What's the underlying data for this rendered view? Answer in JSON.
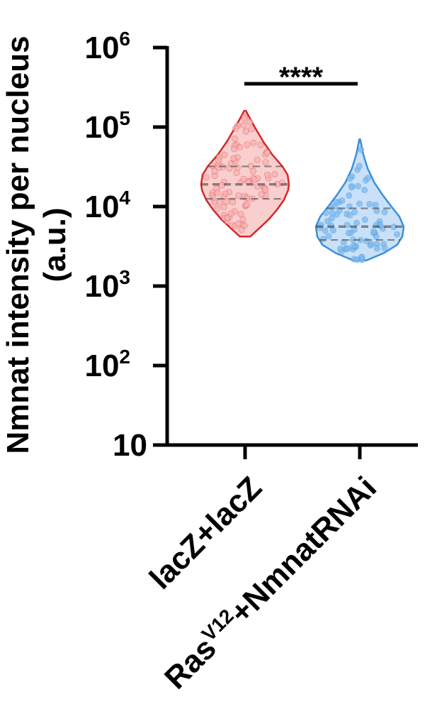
{
  "chart_data": {
    "type": "violin",
    "ylabel_lines": [
      "Nmnat intensity per nucleus",
      "(a.u.)"
    ],
    "yscale": "log",
    "ylim": [
      10,
      1000000
    ],
    "yticks": [
      {
        "value": 10,
        "label": "10",
        "sup": ""
      },
      {
        "value": 100,
        "label": "10",
        "sup": "2"
      },
      {
        "value": 1000,
        "label": "10",
        "sup": "3"
      },
      {
        "value": 10000,
        "label": "10",
        "sup": "4"
      },
      {
        "value": 100000,
        "label": "10",
        "sup": "5"
      },
      {
        "value": 1000000,
        "label": "10",
        "sup": "6"
      }
    ],
    "groups": [
      {
        "label": "lacZ+lacZ",
        "color": "#d62728",
        "fill": "#f4a6a6",
        "point_color": "#f7b2b2",
        "min": 4200,
        "max": 160000,
        "median": 19000,
        "q1": 12500,
        "q3": 32000,
        "width_profile": [
          [
            4200,
            0.12
          ],
          [
            5500,
            0.35
          ],
          [
            7000,
            0.55
          ],
          [
            9000,
            0.72
          ],
          [
            12000,
            0.88
          ],
          [
            16000,
            0.98
          ],
          [
            19000,
            1.0
          ],
          [
            25000,
            0.97
          ],
          [
            32000,
            0.85
          ],
          [
            45000,
            0.62
          ],
          [
            65000,
            0.42
          ],
          [
            100000,
            0.22
          ],
          [
            160000,
            0.02
          ]
        ]
      },
      {
        "label_main": "Ras",
        "label_sup": "V12",
        "label_rest": "+NmnatRNAi",
        "color": "#3b8fd9",
        "fill": "#9cc9f2",
        "point_color": "#7fb8ee",
        "min": 2100,
        "max": 70000,
        "median": 5600,
        "q1": 3800,
        "q3": 9500,
        "width_profile": [
          [
            2100,
            0.15
          ],
          [
            2600,
            0.55
          ],
          [
            3300,
            0.85
          ],
          [
            4200,
            0.97
          ],
          [
            5600,
            1.0
          ],
          [
            7500,
            0.9
          ],
          [
            10000,
            0.72
          ],
          [
            14000,
            0.52
          ],
          [
            20000,
            0.33
          ],
          [
            30000,
            0.18
          ],
          [
            45000,
            0.08
          ],
          [
            70000,
            0.01
          ]
        ]
      }
    ],
    "significance": {
      "label": "****",
      "between": [
        0,
        1
      ]
    }
  }
}
